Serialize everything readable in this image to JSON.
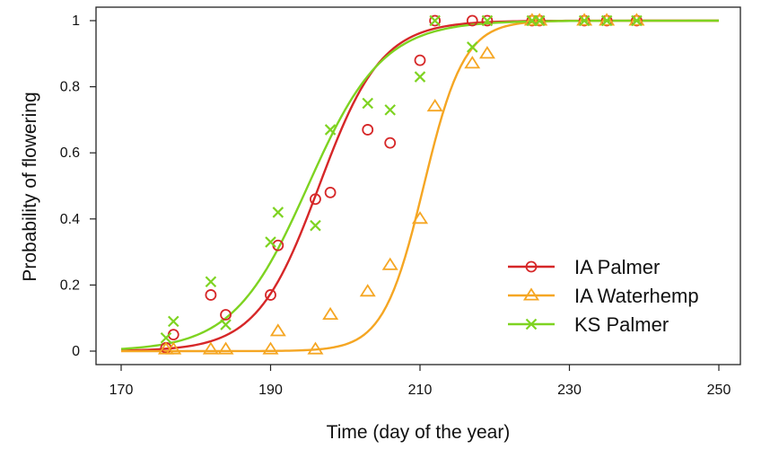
{
  "chart_data": {
    "type": "scatter",
    "title": "",
    "xlabel": "Time (day of the year)",
    "ylabel": "Probability of flowering",
    "xlim": [
      170,
      250
    ],
    "ylim": [
      0,
      1
    ],
    "xticks": [
      "170",
      "190",
      "210",
      "230",
      "250"
    ],
    "yticks": [
      "0",
      "0.2",
      "0.4",
      "0.6",
      "0.8",
      "1"
    ],
    "grid": false,
    "legend_position": "bottom-right",
    "series": [
      {
        "name": "IA Palmer",
        "color": "#d62728",
        "marker": "circle",
        "points": [
          {
            "x": 176,
            "y": 0.01
          },
          {
            "x": 177,
            "y": 0.05
          },
          {
            "x": 182,
            "y": 0.17
          },
          {
            "x": 184,
            "y": 0.11
          },
          {
            "x": 190,
            "y": 0.17
          },
          {
            "x": 191,
            "y": 0.32
          },
          {
            "x": 196,
            "y": 0.46
          },
          {
            "x": 198,
            "y": 0.48
          },
          {
            "x": 203,
            "y": 0.67
          },
          {
            "x": 206,
            "y": 0.63
          },
          {
            "x": 210,
            "y": 0.88
          },
          {
            "x": 212,
            "y": 1.0
          },
          {
            "x": 217,
            "y": 1.0
          },
          {
            "x": 219,
            "y": 1.0
          },
          {
            "x": 225,
            "y": 1.0
          },
          {
            "x": 226,
            "y": 1.0
          },
          {
            "x": 232,
            "y": 1.0
          },
          {
            "x": 235,
            "y": 1.0
          },
          {
            "x": 239,
            "y": 1.0
          }
        ],
        "curve": {
          "midpoint": 196.5,
          "slope": 0.24,
          "x_start": 170,
          "x_end": 250
        }
      },
      {
        "name": "IA Waterhemp",
        "color": "#f5a623",
        "marker": "triangle",
        "points": [
          {
            "x": 176,
            "y": 0.005
          },
          {
            "x": 177,
            "y": 0.005
          },
          {
            "x": 182,
            "y": 0.005
          },
          {
            "x": 184,
            "y": 0.005
          },
          {
            "x": 190,
            "y": 0.005
          },
          {
            "x": 191,
            "y": 0.06
          },
          {
            "x": 196,
            "y": 0.005
          },
          {
            "x": 198,
            "y": 0.11
          },
          {
            "x": 203,
            "y": 0.18
          },
          {
            "x": 206,
            "y": 0.26
          },
          {
            "x": 210,
            "y": 0.4
          },
          {
            "x": 212,
            "y": 0.74
          },
          {
            "x": 217,
            "y": 0.87
          },
          {
            "x": 219,
            "y": 0.9
          },
          {
            "x": 225,
            "y": 1.0
          },
          {
            "x": 226,
            "y": 1.0
          },
          {
            "x": 232,
            "y": 1.0
          },
          {
            "x": 235,
            "y": 1.0
          },
          {
            "x": 239,
            "y": 1.0
          }
        ],
        "curve": {
          "midpoint": 210.5,
          "slope": 0.37,
          "x_start": 170,
          "x_end": 250
        }
      },
      {
        "name": "KS Palmer",
        "color": "#7ed321",
        "marker": "x",
        "points": [
          {
            "x": 176,
            "y": 0.04
          },
          {
            "x": 177,
            "y": 0.09
          },
          {
            "x": 182,
            "y": 0.21
          },
          {
            "x": 184,
            "y": 0.08
          },
          {
            "x": 190,
            "y": 0.33
          },
          {
            "x": 191,
            "y": 0.42
          },
          {
            "x": 196,
            "y": 0.38
          },
          {
            "x": 198,
            "y": 0.67
          },
          {
            "x": 203,
            "y": 0.75
          },
          {
            "x": 206,
            "y": 0.73
          },
          {
            "x": 210,
            "y": 0.83
          },
          {
            "x": 212,
            "y": 1.0
          },
          {
            "x": 217,
            "y": 0.92
          },
          {
            "x": 219,
            "y": 1.0
          },
          {
            "x": 225,
            "y": 1.0
          },
          {
            "x": 226,
            "y": 1.0
          },
          {
            "x": 232,
            "y": 1.0
          },
          {
            "x": 235,
            "y": 1.0
          },
          {
            "x": 239,
            "y": 1.0
          }
        ],
        "curve": {
          "midpoint": 195.0,
          "slope": 0.2,
          "x_start": 170,
          "x_end": 250
        }
      }
    ]
  }
}
